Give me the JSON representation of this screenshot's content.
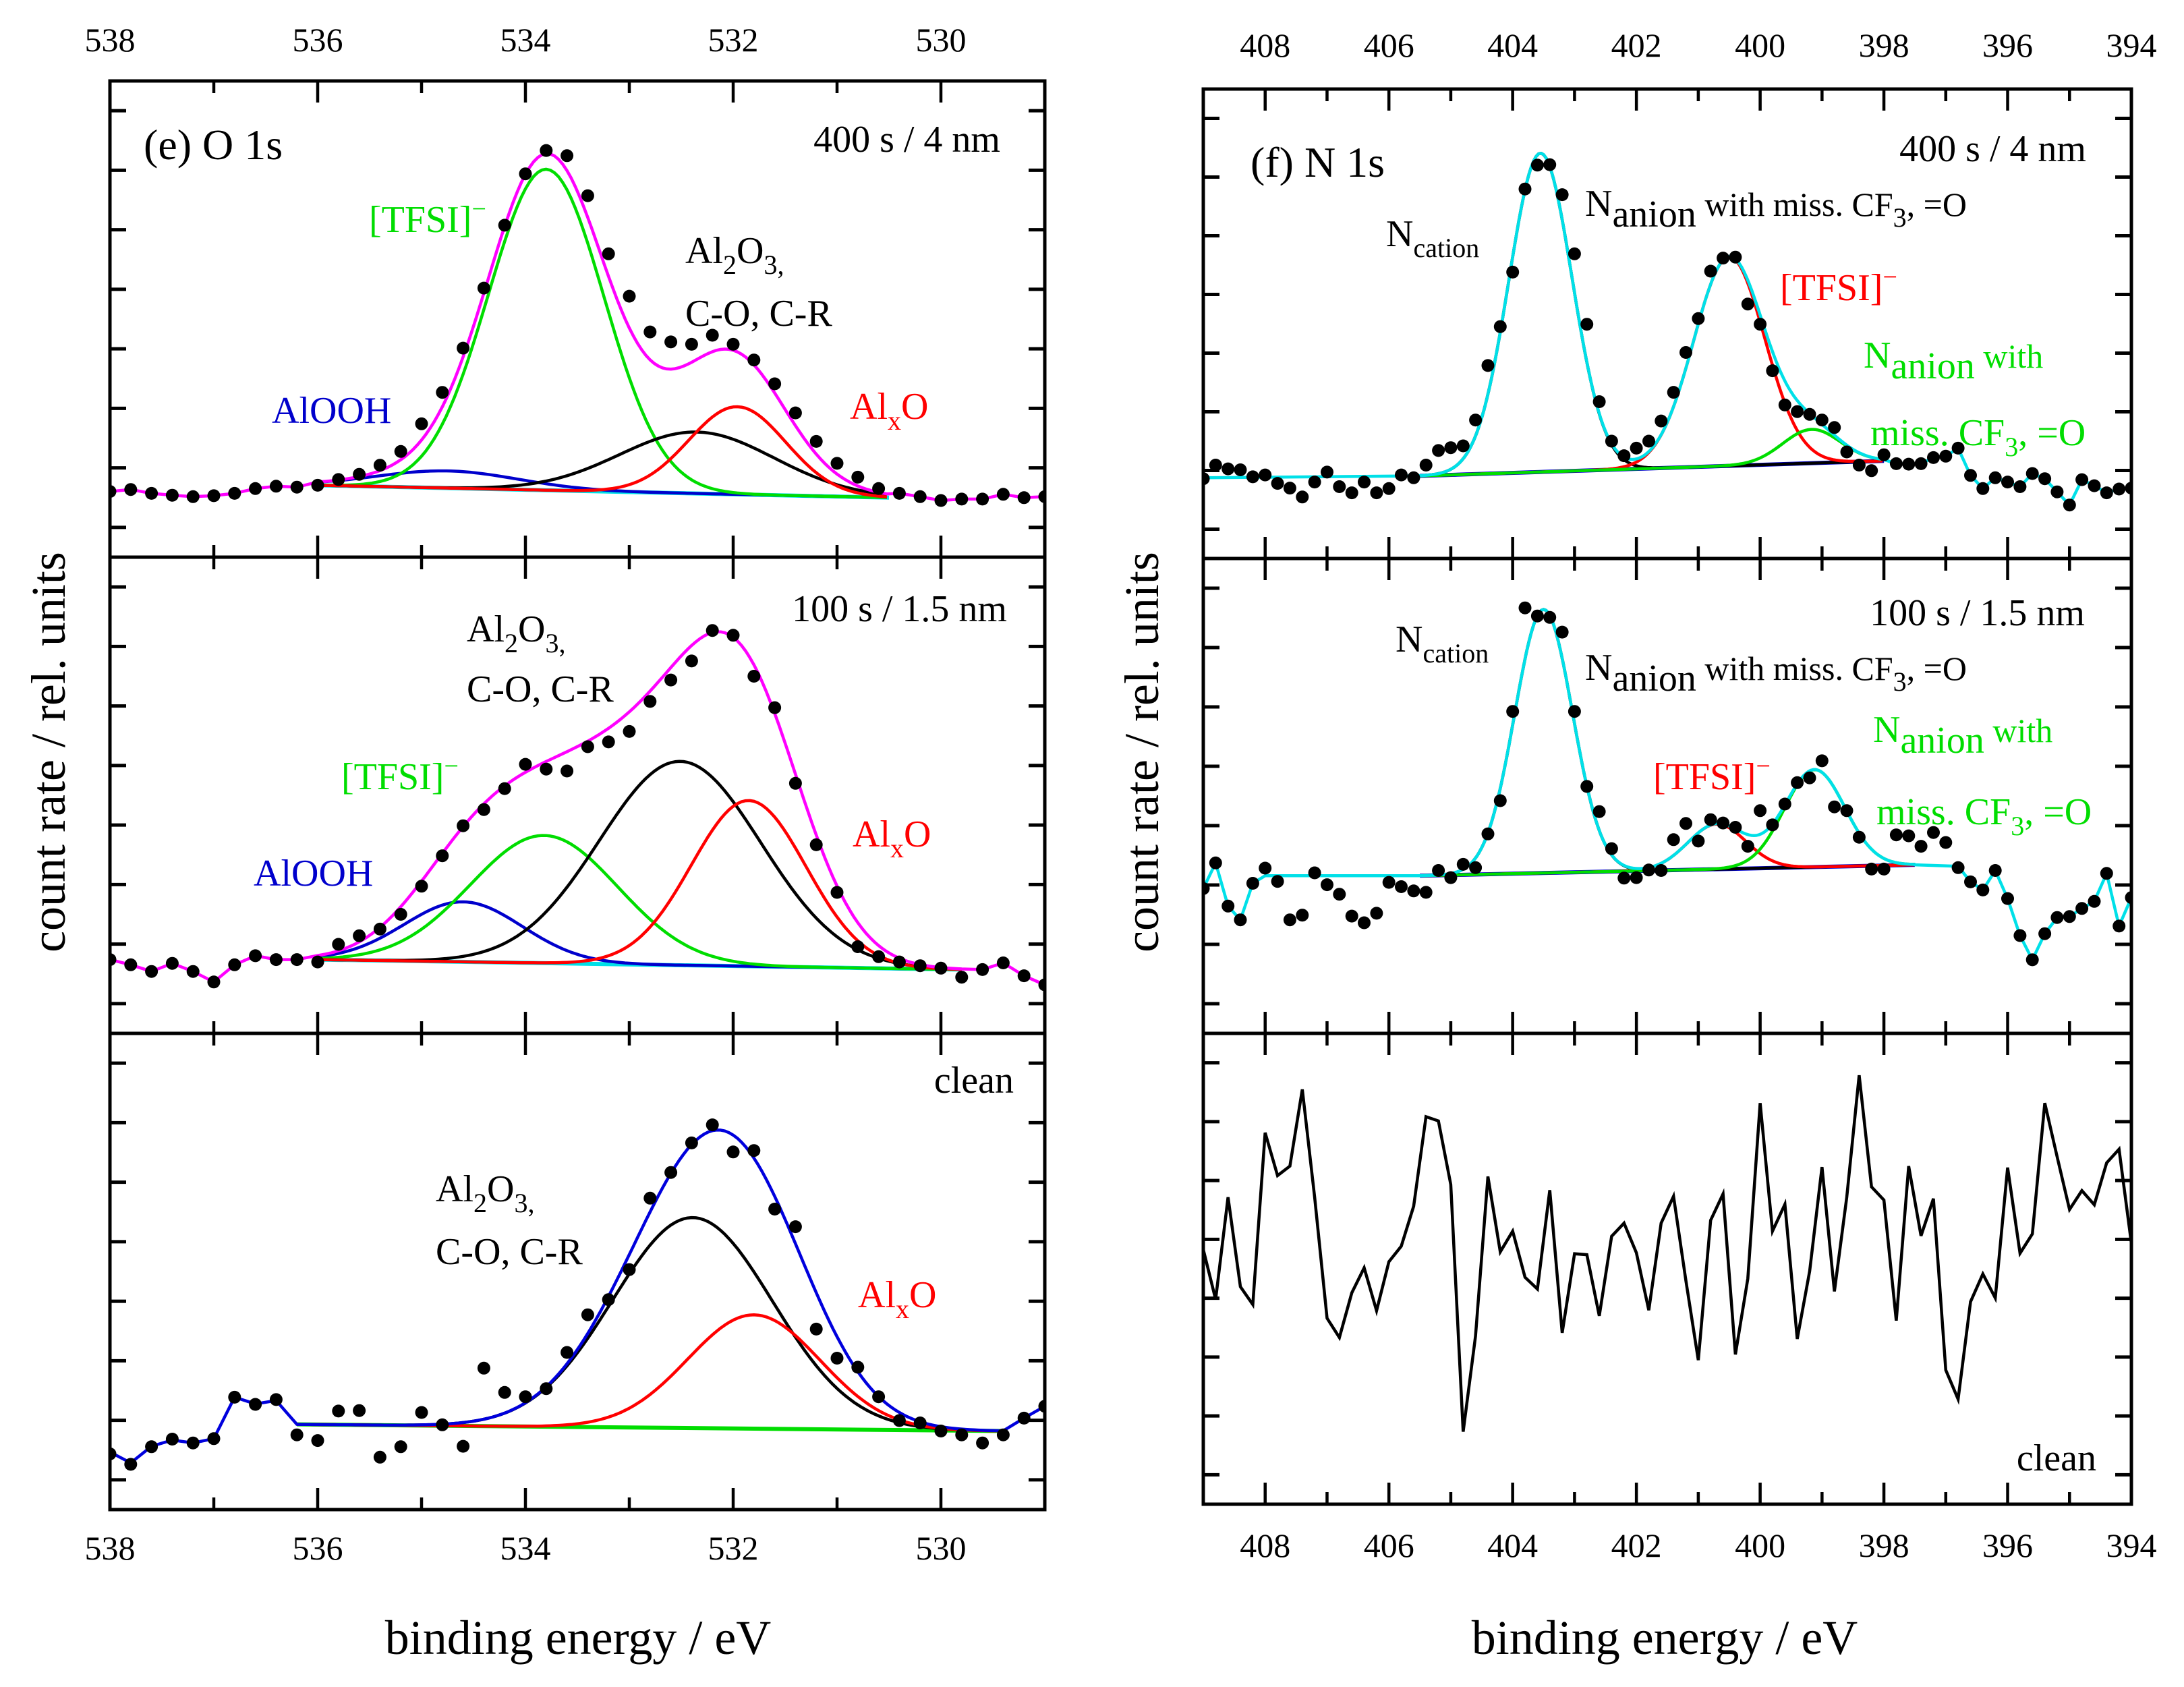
{
  "annotations": {
    "e_title": "(e) O 1s",
    "f_title": "(f) N 1s",
    "al2o3": [
      "Al",
      "2",
      "O",
      "3,"
    ],
    "co_cr": "C-O, C-R",
    "tfsi": [
      "[TFSI]",
      "−"
    ],
    "alooh": "AlOOH",
    "alxo": [
      "Al",
      "x",
      "O"
    ],
    "ncation": [
      "N",
      "cation"
    ],
    "nanion_miss": [
      "N",
      "anion",
      " with miss. CF",
      "3",
      ", =O"
    ],
    "nanion_with": [
      "N",
      "anion",
      " with"
    ],
    "miss_cf3": [
      "miss. CF",
      "3",
      ", =O"
    ]
  },
  "chart_data": [
    {
      "type": "line",
      "title": "(e) O 1s",
      "xlabel": "binding energy / eV",
      "ylabel": "count rate / rel. units",
      "xlim": [
        538,
        529
      ],
      "ylim": [
        0,
        100
      ],
      "xticks": [
        538,
        536,
        534,
        532,
        530
      ],
      "panels": [
        {
          "label": "400 s / 4 nm",
          "data": {
            "x_start": 538,
            "x_step": -0.2,
            "y": [
              13.8,
              14.2,
              13.4,
              13.0,
              12.7,
              12.9,
              13.4,
              14.4,
              14.9,
              14.7,
              15.1,
              16.3,
              17.4,
              19.3,
              22.2,
              28.0,
              34.6,
              43.9,
              56.5,
              69.7,
              80.5,
              85.4,
              84.3,
              75.9,
              63.7,
              54.8,
              47.3,
              45.2,
              44.7,
              46.6,
              44.7,
              41.4,
              36.4,
              30.3,
              24.3,
              19.7,
              16.8,
              14.4,
              13.4,
              12.7,
              11.9,
              12.2,
              12.2,
              13.2,
              12.5,
              12.7
            ]
          },
          "baseline": {
            "color": "#00e0e8",
            "points": [
              [
                536.0,
                15.1
              ],
              [
                530.5,
                12.5
              ]
            ]
          },
          "components": [
            {
              "name": "AlOOH",
              "color": "#0000cc",
              "center": 534.75,
              "fwhm": 1.6,
              "amplitude": 3.6
            },
            {
              "name": "[TFSI]-",
              "color": "#00dd00",
              "center": 533.8,
              "fwhm": 1.31,
              "amplitude": 67.4
            },
            {
              "name": "Al2O3, C-O, C-R",
              "color": "#000000",
              "center": 532.35,
              "fwhm": 1.75,
              "amplitude": 12.9
            },
            {
              "name": "AlxO",
              "color": "#ff0000",
              "center": 531.96,
              "fwhm": 1.1,
              "amplitude": 18.4
            }
          ],
          "envelope": {
            "color": "#ff00ff",
            "left": "data",
            "right": "data"
          }
        },
        {
          "label": "100 s / 1.5 nm",
          "data": {
            "x_start": 538,
            "x_step": -0.2,
            "y": [
              15.5,
              14.4,
              13.0,
              14.7,
              13.0,
              10.8,
              14.4,
              16.3,
              15.5,
              15.5,
              15.0,
              18.7,
              20.5,
              21.9,
              25.0,
              30.9,
              37.3,
              43.6,
              47.0,
              51.4,
              56.5,
              55.5,
              55.1,
              60.2,
              61.2,
              63.4,
              69.7,
              74.2,
              78.2,
              84.6,
              83.6,
              75.0,
              68.4,
              52.5,
              39.6,
              29.6,
              18.2,
              16.1,
              15.0,
              14.2,
              13.7,
              11.8,
              13.4,
              14.8,
              12.1,
              10.2
            ]
          },
          "baseline": {
            "color": "#00e0e8",
            "points": [
              [
                536.0,
                15.5
              ],
              [
                529.8,
                13.4
              ]
            ]
          },
          "components": [
            {
              "name": "AlOOH",
              "color": "#0000cc",
              "center": 534.6,
              "fwhm": 1.34,
              "amplitude": 12.6
            },
            {
              "name": "[TFSI]-",
              "color": "#00dd00",
              "center": 533.82,
              "fwhm": 1.67,
              "amplitude": 26.8
            },
            {
              "name": "Al2O3, C-O, C-R",
              "color": "#000000",
              "center": 532.51,
              "fwhm": 1.83,
              "amplitude": 42.8
            },
            {
              "name": "AlxO",
              "color": "#ff0000",
              "center": 531.85,
              "fwhm": 1.3,
              "amplitude": 34.8
            }
          ],
          "envelope": {
            "color": "#ff00ff",
            "left": "data",
            "right": "data"
          }
        },
        {
          "label": "clean",
          "data": {
            "x_start": 538,
            "x_step": -0.2,
            "y": [
              11.7,
              9.5,
              13.2,
              14.8,
              14.0,
              14.9,
              23.6,
              22.1,
              23.1,
              15.7,
              14.5,
              20.7,
              20.8,
              11.0,
              13.2,
              20.4,
              17.8,
              13.3,
              29.7,
              24.6,
              23.7,
              25.4,
              33.0,
              40.9,
              44.1,
              50.4,
              65.4,
              70.8,
              77.0,
              80.8,
              75.1,
              75.4,
              63.1,
              59.4,
              37.9,
              31.8,
              29.9,
              23.7,
              18.7,
              18.2,
              16.5,
              15.7,
              14.0,
              15.7,
              19.2,
              21.7
            ]
          },
          "baseline": {
            "color": "#00dd00",
            "points": [
              [
                536.2,
                17.9
              ],
              [
                529.4,
                16.5
              ]
            ]
          },
          "components": [
            {
              "name": "Al2O3, C-O, C-R",
              "color": "#000000",
              "center": 532.39,
              "fwhm": 1.81,
              "amplitude": 44.2
            },
            {
              "name": "AlxO",
              "color": "#ff0000",
              "center": 531.8,
              "fwhm": 1.5,
              "amplitude": 23.9
            }
          ],
          "envelope": {
            "color": "#0000dd",
            "left": [
              [
                538.0,
                12.1
              ],
              [
                537.8,
                9.8
              ],
              [
                537.6,
                13.3
              ],
              [
                537.4,
                14.6
              ],
              [
                537.2,
                14.0
              ],
              [
                537.0,
                14.9
              ],
              [
                536.8,
                23.6
              ],
              [
                536.6,
                22.2
              ],
              [
                536.4,
                22.9
              ]
            ],
            "right": "data"
          }
        }
      ]
    },
    {
      "type": "line",
      "title": "(f) N 1s",
      "xlabel": "binding energy / eV",
      "ylabel": "count rate / rel. units",
      "xlim": [
        409,
        394
      ],
      "ylim": [
        0,
        100
      ],
      "xticks": [
        408,
        406,
        404,
        402,
        400,
        398,
        396,
        394
      ],
      "panels": [
        {
          "label": "400 s / 4 nm",
          "data": {
            "x_start": 409,
            "x_step": -0.2,
            "y": [
              17.0,
              19.9,
              19.1,
              18.9,
              17.4,
              17.8,
              16.0,
              15.0,
              13.1,
              16.3,
              18.4,
              15.3,
              14.0,
              16.3,
              14.0,
              14.9,
              17.8,
              17.2,
              19.9,
              23.0,
              23.6,
              24.0,
              29.5,
              41.1,
              49.4,
              61.0,
              78.7,
              83.8,
              83.9,
              77.5,
              64.9,
              49.9,
              33.4,
              25.0,
              21.9,
              23.5,
              25.0,
              29.3,
              35.4,
              43.9,
              51.1,
              61.2,
              64.0,
              64.2,
              54.2,
              49.9,
              40.0,
              32.7,
              31.3,
              30.7,
              29.5,
              27.9,
              22.7,
              19.9,
              18.7,
              22.1,
              20.2,
              20.1,
              20.2,
              21.5,
              21.8,
              23.5,
              17.7,
              14.9,
              17.2,
              16.3,
              15.3,
              18.1,
              17.0,
              14.2,
              11.4,
              16.8,
              15.5,
              14.0,
              14.8,
              15.0,
              15.0
            ]
          },
          "baseline": {
            "color": "#0000cc",
            "points": [
              [
                405.5,
                17.6
              ],
              [
                398.0,
                20.8
              ]
            ]
          },
          "components": [
            {
              "name": "N cation",
              "color": "#000000",
              "center": 403.55,
              "fwhm": 1.2,
              "amplitude": 67.9
            },
            {
              "name": "[TFSI]-",
              "color": "#ff0000",
              "center": 400.5,
              "fwhm": 1.35,
              "amplitude": 44.5
            },
            {
              "name": "N anion with miss. CF3, =O",
              "color": "#00dd00",
              "center": 399.17,
              "fwhm": 1.1,
              "amplitude": 7.2
            }
          ],
          "envelope": {
            "color": "#00e0e8",
            "left": [
              [
                409.0,
                17.2
              ],
              [
                405.5,
                17.6
              ]
            ],
            "right": "data"
          }
        },
        {
          "label": "100 s / 1.5 nm",
          "data": {
            "x_start": 409,
            "x_step": -0.2,
            "y": [
              30.5,
              35.9,
              26.8,
              23.9,
              31.6,
              34.8,
              32.0,
              23.9,
              24.9,
              33.8,
              31.3,
              29.3,
              24.7,
              23.3,
              25.3,
              31.8,
              30.9,
              30.0,
              29.7,
              34.3,
              32.8,
              35.6,
              34.9,
              42.0,
              49.0,
              67.8,
              89.6,
              87.9,
              87.6,
              84.5,
              67.8,
              52.0,
              46.7,
              38.9,
              32.7,
              32.8,
              34.4,
              34.3,
              40.8,
              44.2,
              40.5,
              45.0,
              44.3,
              43.4,
              39.4,
              46.9,
              43.9,
              48.3,
              52.8,
              53.8,
              57.4,
              47.7,
              46.9,
              41.3,
              34.6,
              34.6,
              41.8,
              41.6,
              39.4,
              42.3,
              40.2,
              34.9,
              31.9,
              30.2,
              34.3,
              28.4,
              20.6,
              15.5,
              21.0,
              24.4,
              24.6,
              26.3,
              27.8,
              33.7,
              22.6,
              28.6,
              28.6
            ]
          },
          "baseline": {
            "color": "#0000cc",
            "points": [
              [
                405.5,
                33.2
              ],
              [
                397.5,
                35.5
              ]
            ]
          },
          "components": [
            {
              "name": "N cation",
              "color": "#000000",
              "center": 403.5,
              "fwhm": 1.1,
              "amplitude": 55.5
            },
            {
              "name": "[TFSI]-",
              "color": "#ff0000",
              "center": 400.7,
              "fwhm": 1.1,
              "amplitude": 9.5
            },
            {
              "name": "N anion with miss. CF3, =O",
              "color": "#00dd00",
              "center": 399.12,
              "fwhm": 1.15,
              "amplitude": 20.5
            }
          ],
          "envelope": {
            "color": "#00e0e8",
            "left": [
              [
                409.0,
                30.5
              ],
              [
                408.8,
                35.9
              ],
              [
                408.6,
                26.8
              ],
              [
                408.4,
                23.9
              ],
              [
                408.2,
                31.6
              ],
              [
                408.0,
                33.2
              ],
              [
                405.5,
                33.2
              ]
            ],
            "right": [
              [
                397.5,
                35.5
              ],
              [
                396.8,
                35.2
              ],
              [
                396.6,
                31.9
              ],
              [
                396.4,
                30.2
              ],
              [
                396.2,
                34.3
              ],
              [
                396.0,
                28.4
              ],
              [
                395.8,
                20.6
              ],
              [
                395.6,
                15.5
              ],
              [
                395.4,
                21.0
              ],
              [
                395.2,
                24.4
              ],
              [
                395.0,
                24.6
              ],
              [
                394.8,
                26.3
              ],
              [
                394.6,
                27.8
              ],
              [
                394.4,
                33.7
              ],
              [
                394.2,
                22.6
              ],
              [
                394.0,
                28.6
              ]
            ]
          }
        },
        {
          "label": "clean",
          "line": {
            "color": "#000000",
            "x_start": 409,
            "x_step": -0.2,
            "y": [
              54.1,
              43.5,
              65.2,
              46.2,
              42.4,
              78.9,
              69.8,
              71.8,
              88.1,
              65.2,
              39.5,
              35.4,
              44.9,
              50.2,
              41.1,
              51.5,
              54.8,
              63.3,
              82.3,
              81.4,
              67.9,
              15.4,
              35.7,
              69.6,
              53.6,
              58.0,
              48.2,
              45.7,
              66.7,
              36.4,
              53.2,
              53.0,
              40.0,
              56.9,
              59.7,
              53.4,
              41.2,
              59.7,
              65.4,
              47.5,
              30.6,
              60.3,
              65.9,
              31.8,
              47.9,
              85.2,
              58.0,
              63.7,
              35.1,
              49.5,
              71.6,
              45.2,
              65.2,
              91.1,
              67.4,
              64.6,
              39.0,
              71.8,
              57.0,
              64.9,
              28.5,
              22.3,
              43.0,
              48.9,
              43.8,
              71.5,
              53.3,
              57.4,
              85.2,
              73.8,
              62.6,
              66.6,
              63.6,
              72.5,
              75.4,
              55.4
            ]
          }
        }
      ]
    }
  ]
}
